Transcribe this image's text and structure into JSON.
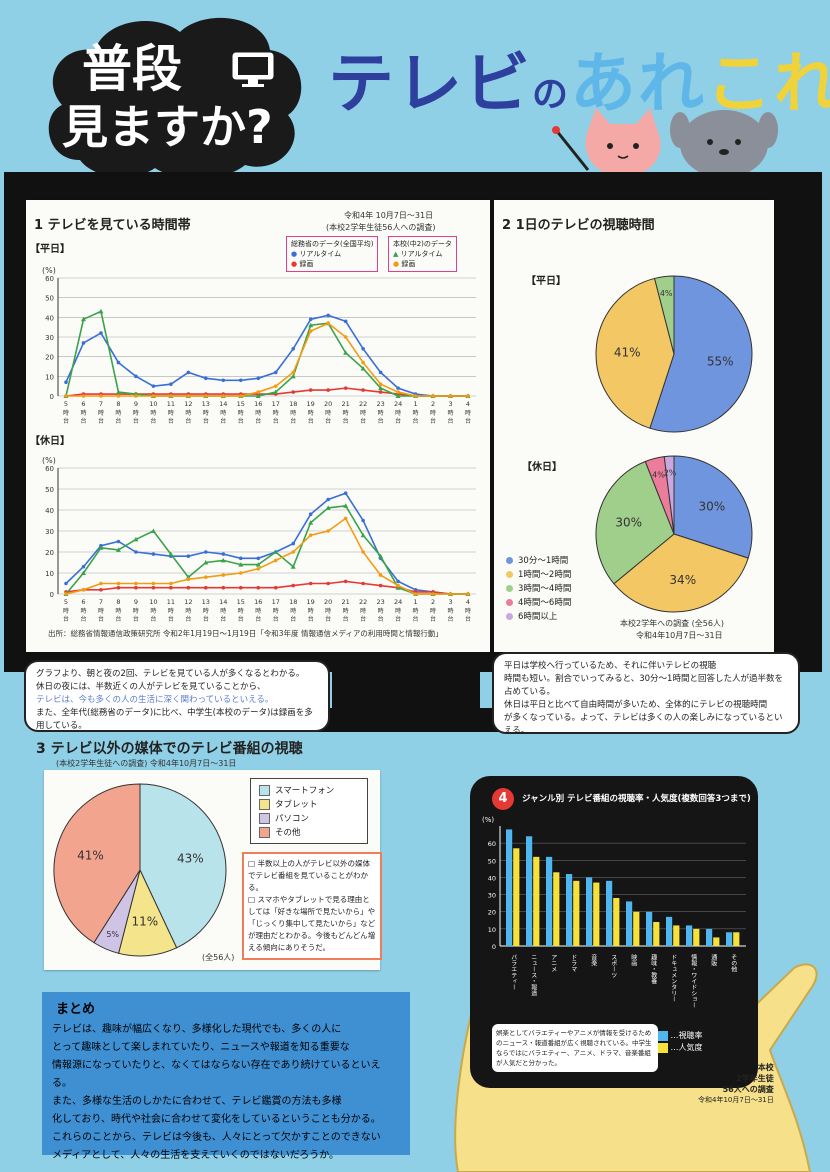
{
  "header": {
    "cloud_line1": "普段",
    "cloud_line2": "見ますか?",
    "title_part1": "テレビ",
    "title_part2": "の",
    "title_part3": "あれ",
    "title_part4": "これ",
    "colors": {
      "navy": "#2e3f9e",
      "light_blue": "#5fb6e8",
      "yellow": "#f0d23a",
      "pink": "#f4a9a6",
      "gray": "#8a8f99"
    }
  },
  "section1": {
    "title": "1 テレビを見ている時間帯",
    "survey_note": "令和4年 10月7日～31日",
    "survey_note2": "(本校2学年生徒56人への調査)",
    "weekday_label": "【平日】",
    "holiday_label": "【休日】",
    "legend_national": "総務省のデータ(全国平均)",
    "legend_school": "本校(中2)のデータ",
    "legend_realtime": "リアルタイム",
    "legend_recorded": "録画",
    "y_unit": "(%)",
    "source": "出所：総務省情報通信政策研究所 令和2年1月19日～1月19日「令和3年度 情報通信メディアの利用時間と情報行動」"
  },
  "section2": {
    "title": "2 1日のテレビの視聴時間",
    "weekday_label": "【平日】",
    "holiday_label": "【休日】",
    "legend": [
      "30分～1時間",
      "1時間～2時間",
      "3時間～4時間",
      "4時間～6時間",
      "6時間以上"
    ],
    "legend_colors": [
      "#6f95df",
      "#f2c764",
      "#9fcf8a",
      "#ec7c9b",
      "#c9a8e0"
    ],
    "note1": "本校2学年への調査 (全56人)",
    "note2": "令和4年10月7日～31日"
  },
  "speech_left": {
    "lines": [
      "グラフより、朝と夜の2回、テレビを見ている人が多くなるとわかる。",
      "休日の夜には、半数近くの人がテレビを見ていることから、",
      "テレビは、今も多くの人の生活に深く関わっているといえる。",
      "また、全年代(総務省のデータ)に比べ、中学生(本校のデータ)は録画を多用している。"
    ]
  },
  "speech_right": {
    "lines": [
      "平日は学校へ行っているため、それに伴いテレビの視聴",
      "時間も短い。割合でいってみると、30分～1時間と回答した人が過半数を",
      "占めている。",
      "休日は平日と比べて自由時間が多いため、全体的にテレビの視聴時間",
      "が多くなっている。よって、テレビは多くの人の楽しみになっているといえる。"
    ]
  },
  "section3": {
    "title": "3 テレビ以外の媒体でのテレビ番組の視聴",
    "subtitle": "(本校2学年生徒への調査) 令和4年10月7日～31日",
    "legend": [
      "スマートフォン",
      "タブレット",
      "パソコン",
      "その他"
    ],
    "legend_colors": [
      "#b9e3ea",
      "#f4e58c",
      "#cfc3e6",
      "#f3a48e"
    ],
    "pie_labels": [
      "43%",
      "11%",
      "5%",
      "41%"
    ],
    "pie_note": "(全56人)",
    "notes": [
      "半数以上の人がテレビ以外の媒体でテレビ番組を見ていることがわかる。",
      "スマホやタブレットで見る理由としては「好きな場所で見たいから」や「じっくり集中して見たいから」などが理由だとわかる。今後もどんどん増える傾向にありそうだ。"
    ]
  },
  "summary": {
    "title": "まとめ",
    "lines": [
      "テレビは、趣味が幅広くなり、多様化した現代でも、多くの人に",
      "とって趣味として楽しまれていたり、ニュースや報道を知る重要な",
      "情報源になっていたりと、なくてはならない存在であり続けているといえる。",
      "また、多様な生活のしかたに合わせて、テレビ鑑賞の方法も多様",
      "化しており、時代や社会に合わせて変化をしているということも分かる。",
      "これらのことから、テレビは今後も、人々にとって欠かすことのできない",
      "メディアとして、人々の生活を支えていくのではないだろうか。"
    ]
  },
  "section4": {
    "number": "4",
    "title": "ジャンル別 テレビ番組の視聴率・人気度(複数回答3つまで)",
    "y_unit": "(%)",
    "legend_viewing": "…視聴率",
    "legend_popularity": "…人気度",
    "comment": "娯楽としてバラエティーやアニメが情報を受けるためのニュース・報道番組が広く視聴されている。中学生ならではにバラエティー、アニメ、ドラマ、音楽番組が人気だと分かった。",
    "footer1": "本校",
    "footer2": "2学年生徒",
    "footer3": "56人への調査",
    "footer4": "令和4年10月7日～31日"
  },
  "chart_data": [
    {
      "type": "line",
      "title": "【平日】",
      "ylabel": "(%)",
      "ylim": [
        0,
        60
      ],
      "x": [
        "5時台",
        "6時台",
        "7時台",
        "8時台",
        "9時台",
        "10時台",
        "11時台",
        "12時台",
        "13時台",
        "14時台",
        "15時台",
        "16時台",
        "17時台",
        "18時台",
        "19時台",
        "20時台",
        "21時台",
        "22時台",
        "23時台",
        "24時台",
        "1時台",
        "2時台",
        "3時台",
        "4時台"
      ],
      "series": [
        {
          "name": "リアルタイム",
          "values": [
            7,
            27,
            32,
            17,
            10,
            5,
            6,
            12,
            9,
            8,
            8,
            9,
            12,
            24,
            39,
            41,
            38,
            24,
            12,
            4,
            1,
            0,
            0,
            0
          ]
        },
        {
          "name": "録画",
          "values": [
            0,
            1,
            1,
            1,
            1,
            1,
            1,
            1,
            1,
            1,
            1,
            1,
            1,
            2,
            3,
            3,
            4,
            3,
            2,
            1,
            0,
            0,
            0,
            0
          ]
        },
        {
          "name": "リアルタイム",
          "values": [
            0,
            39,
            43,
            2,
            1,
            0,
            0,
            0,
            0,
            0,
            0,
            0,
            2,
            10,
            36,
            37,
            22,
            14,
            4,
            0,
            0,
            0,
            0,
            0
          ]
        },
        {
          "name": "録画",
          "values": [
            0,
            0,
            0,
            0,
            0,
            0,
            0,
            0,
            0,
            0,
            0,
            2,
            5,
            12,
            33,
            37,
            30,
            17,
            6,
            2,
            0,
            0,
            0,
            0
          ]
        }
      ]
    },
    {
      "type": "line",
      "title": "【休日】",
      "ylabel": "(%)",
      "ylim": [
        0,
        60
      ],
      "x": [
        "5時台",
        "6時台",
        "7時台",
        "8時台",
        "9時台",
        "10時台",
        "11時台",
        "12時台",
        "13時台",
        "14時台",
        "15時台",
        "16時台",
        "17時台",
        "18時台",
        "19時台",
        "20時台",
        "21時台",
        "22時台",
        "23時台",
        "24時台",
        "1時台",
        "2時台",
        "3時台",
        "4時台"
      ],
      "series": [
        {
          "name": "リアルタイム",
          "values": [
            5,
            13,
            23,
            25,
            20,
            19,
            18,
            18,
            20,
            19,
            17,
            17,
            20,
            24,
            38,
            45,
            48,
            35,
            17,
            6,
            2,
            1,
            0,
            0
          ]
        },
        {
          "name": "録画",
          "values": [
            1,
            2,
            2,
            3,
            3,
            3,
            3,
            3,
            3,
            3,
            3,
            3,
            3,
            4,
            5,
            5,
            6,
            5,
            4,
            3,
            1,
            1,
            0,
            0
          ]
        },
        {
          "name": "リアルタイム",
          "values": [
            0,
            10,
            22,
            21,
            26,
            30,
            19,
            8,
            15,
            16,
            14,
            14,
            20,
            13,
            34,
            41,
            42,
            28,
            18,
            3,
            0,
            0,
            0,
            0
          ]
        },
        {
          "name": "録画",
          "values": [
            0,
            2,
            5,
            5,
            5,
            5,
            5,
            7,
            8,
            9,
            10,
            12,
            16,
            20,
            28,
            30,
            36,
            20,
            9,
            4,
            0,
            0,
            0,
            0
          ]
        }
      ]
    },
    {
      "type": "pie",
      "title": "【平日】",
      "categories": [
        "30分～1時間",
        "1時間～2時間",
        "3時間～4時間"
      ],
      "values": [
        55,
        41,
        4
      ]
    },
    {
      "type": "pie",
      "title": "【休日】",
      "categories": [
        "30分～1時間",
        "1時間～2時間",
        "3時間～4時間",
        "4時間～6時間",
        "6時間以上"
      ],
      "values": [
        30,
        34,
        30,
        4,
        2
      ]
    },
    {
      "type": "pie",
      "categories": [
        "スマートフォン",
        "タブレット",
        "パソコン",
        "その他"
      ],
      "values": [
        43,
        11,
        5,
        41
      ]
    },
    {
      "type": "bar",
      "title": "ジャンル別 テレビ番組の視聴率・人気度(複数回答3つまで)",
      "ylabel": "(%)",
      "ylim": [
        0,
        70
      ],
      "categories": [
        "バラエティー",
        "ニュース・報道",
        "アニメ",
        "ドラマ",
        "音楽",
        "スポーツ",
        "映画",
        "趣味・教養",
        "ドキュメンタリー",
        "情報・ワイドショー",
        "通販",
        "その他"
      ],
      "series": [
        {
          "name": "視聴率",
          "values": [
            68,
            64,
            52,
            42,
            40,
            38,
            26,
            20,
            17,
            12,
            10,
            8
          ]
        },
        {
          "name": "人気度",
          "values": [
            57,
            52,
            43,
            38,
            37,
            28,
            20,
            14,
            12,
            10,
            5,
            8
          ]
        }
      ]
    }
  ]
}
